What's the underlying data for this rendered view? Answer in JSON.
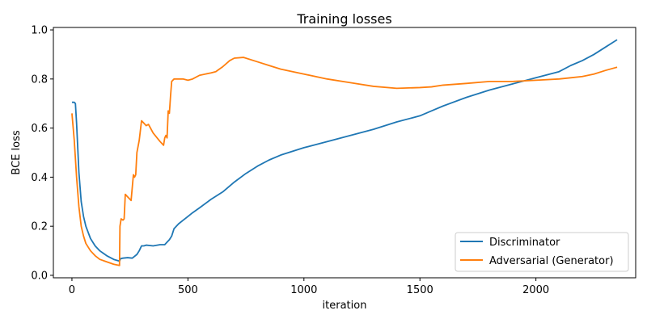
{
  "chart_data": {
    "type": "line",
    "title": "Training losses",
    "xlabel": "iteration",
    "ylabel": "BCE loss",
    "xlim": [
      -80,
      2430
    ],
    "ylim": [
      -0.01,
      1.01
    ],
    "xticks": [
      0,
      500,
      1000,
      1500,
      2000
    ],
    "yticks": [
      0.0,
      0.2,
      0.4,
      0.6,
      0.8,
      1.0
    ],
    "xtick_labels": [
      "0",
      "500",
      "1000",
      "1500",
      "2000"
    ],
    "ytick_labels": [
      "0.0",
      "0.2",
      "0.4",
      "0.6",
      "0.8",
      "1.0"
    ],
    "grid": false,
    "legend_position": "lower-right",
    "series": [
      {
        "name": "Discriminator",
        "color": "#1f77b4",
        "x": [
          0,
          10,
          15,
          20,
          30,
          40,
          50,
          60,
          80,
          100,
          120,
          150,
          180,
          205,
          210,
          220,
          240,
          260,
          280,
          290,
          300,
          310,
          320,
          350,
          380,
          400,
          410,
          420,
          430,
          440,
          460,
          480,
          500,
          520,
          550,
          600,
          650,
          700,
          750,
          800,
          850,
          900,
          1000,
          1100,
          1200,
          1300,
          1400,
          1500,
          1550,
          1600,
          1700,
          1800,
          1900,
          2000,
          2100,
          2150,
          2200,
          2250,
          2300,
          2350
        ],
        "y": [
          0.705,
          0.705,
          0.7,
          0.62,
          0.42,
          0.3,
          0.24,
          0.2,
          0.15,
          0.12,
          0.1,
          0.08,
          0.065,
          0.058,
          0.068,
          0.07,
          0.072,
          0.07,
          0.085,
          0.1,
          0.12,
          0.12,
          0.123,
          0.12,
          0.125,
          0.125,
          0.135,
          0.145,
          0.16,
          0.19,
          0.21,
          0.225,
          0.24,
          0.255,
          0.275,
          0.31,
          0.34,
          0.38,
          0.415,
          0.445,
          0.47,
          0.49,
          0.52,
          0.545,
          0.57,
          0.595,
          0.625,
          0.65,
          0.67,
          0.69,
          0.725,
          0.755,
          0.78,
          0.805,
          0.83,
          0.855,
          0.875,
          0.9,
          0.93,
          0.96
        ]
      },
      {
        "name": "Adversarial (Generator)",
        "color": "#ff7f0e",
        "x": [
          0,
          10,
          20,
          30,
          40,
          50,
          60,
          80,
          100,
          120,
          150,
          180,
          205,
          207,
          212,
          220,
          225,
          230,
          240,
          250,
          255,
          265,
          270,
          275,
          280,
          290,
          300,
          310,
          320,
          330,
          350,
          380,
          395,
          400,
          405,
          410,
          415,
          420,
          425,
          430,
          440,
          460,
          480,
          500,
          520,
          550,
          600,
          620,
          650,
          680,
          700,
          740,
          800,
          850,
          900,
          1000,
          1100,
          1200,
          1300,
          1400,
          1500,
          1550,
          1600,
          1700,
          1800,
          1900,
          2000,
          2100,
          2150,
          2200,
          2250,
          2300,
          2350
        ],
        "y": [
          0.66,
          0.55,
          0.4,
          0.28,
          0.2,
          0.16,
          0.13,
          0.1,
          0.08,
          0.065,
          0.055,
          0.045,
          0.04,
          0.2,
          0.23,
          0.225,
          0.23,
          0.33,
          0.32,
          0.31,
          0.305,
          0.41,
          0.4,
          0.41,
          0.5,
          0.55,
          0.63,
          0.62,
          0.61,
          0.615,
          0.58,
          0.545,
          0.53,
          0.56,
          0.57,
          0.56,
          0.67,
          0.66,
          0.73,
          0.79,
          0.8,
          0.8,
          0.8,
          0.795,
          0.8,
          0.815,
          0.825,
          0.83,
          0.85,
          0.875,
          0.885,
          0.888,
          0.87,
          0.855,
          0.84,
          0.82,
          0.8,
          0.785,
          0.77,
          0.762,
          0.765,
          0.768,
          0.775,
          0.782,
          0.79,
          0.79,
          0.795,
          0.8,
          0.805,
          0.81,
          0.82,
          0.835,
          0.848
        ]
      }
    ]
  }
}
